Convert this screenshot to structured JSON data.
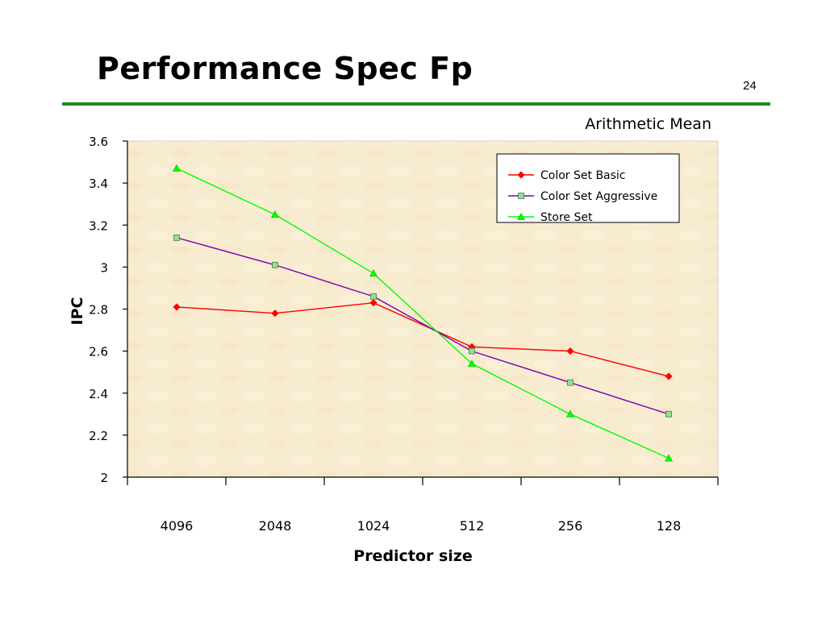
{
  "slide": {
    "title": "Performance Spec Fp",
    "number": "24",
    "accent_color": "#1f8a1f"
  },
  "chart_data": {
    "type": "line",
    "title": "Arithmetic Mean",
    "xlabel": "Predictor size",
    "ylabel": "IPC",
    "categories": [
      "4096",
      "2048",
      "1024",
      "512",
      "256",
      "128"
    ],
    "ylim": [
      2,
      3.6
    ],
    "yticks": [
      "2",
      "2.2",
      "2.4",
      "2.6",
      "2.8",
      "3",
      "3.2",
      "3.4",
      "3.6"
    ],
    "grid": false,
    "legend_position": "top-right",
    "plot_background": "#f8ecd0",
    "series": [
      {
        "name": "Color Set Basic",
        "color": "#ff0000",
        "marker": "diamond",
        "values": [
          2.81,
          2.78,
          2.83,
          2.62,
          2.6,
          2.48
        ]
      },
      {
        "name": "Color Set Aggressive",
        "color": "#7a00b0",
        "marker_fill": "#90e090",
        "marker": "square",
        "values": [
          3.14,
          3.01,
          2.86,
          2.6,
          2.45,
          2.3
        ]
      },
      {
        "name": "Store Set",
        "color": "#00ff00",
        "marker": "triangle",
        "values": [
          3.47,
          3.25,
          2.97,
          2.54,
          2.3,
          2.09
        ]
      }
    ]
  }
}
